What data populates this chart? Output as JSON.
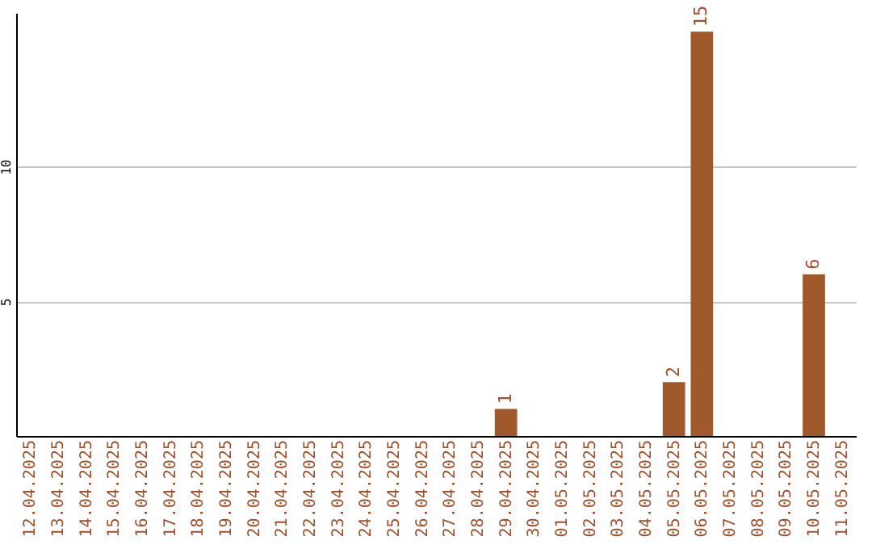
{
  "chart_data": {
    "type": "bar",
    "categories": [
      "12.04.2025",
      "13.04.2025",
      "14.04.2025",
      "15.04.2025",
      "16.04.2025",
      "17.04.2025",
      "18.04.2025",
      "19.04.2025",
      "20.04.2025",
      "21.04.2025",
      "22.04.2025",
      "23.04.2025",
      "24.04.2025",
      "25.04.2025",
      "26.04.2025",
      "27.04.2025",
      "28.04.2025",
      "29.04.2025",
      "30.04.2025",
      "01.05.2025",
      "02.05.2025",
      "03.05.2025",
      "04.05.2025",
      "05.05.2025",
      "06.05.2025",
      "07.05.2025",
      "08.05.2025",
      "09.05.2025",
      "10.05.2025",
      "11.05.2025"
    ],
    "values": [
      0,
      0,
      0,
      0,
      0,
      0,
      0,
      0,
      0,
      0,
      0,
      0,
      0,
      0,
      0,
      0,
      0,
      1,
      0,
      0,
      0,
      0,
      0,
      2,
      15,
      0,
      0,
      0,
      6,
      0
    ],
    "value_labels": [
      null,
      null,
      null,
      null,
      null,
      null,
      null,
      null,
      null,
      null,
      null,
      null,
      null,
      null,
      null,
      null,
      null,
      "1",
      null,
      null,
      null,
      null,
      null,
      "2",
      "15",
      null,
      null,
      null,
      "6",
      null
    ],
    "color": "#a0592b",
    "ylim": [
      0,
      15.7
    ],
    "yticks": [
      5,
      10
    ],
    "grid": "y"
  }
}
